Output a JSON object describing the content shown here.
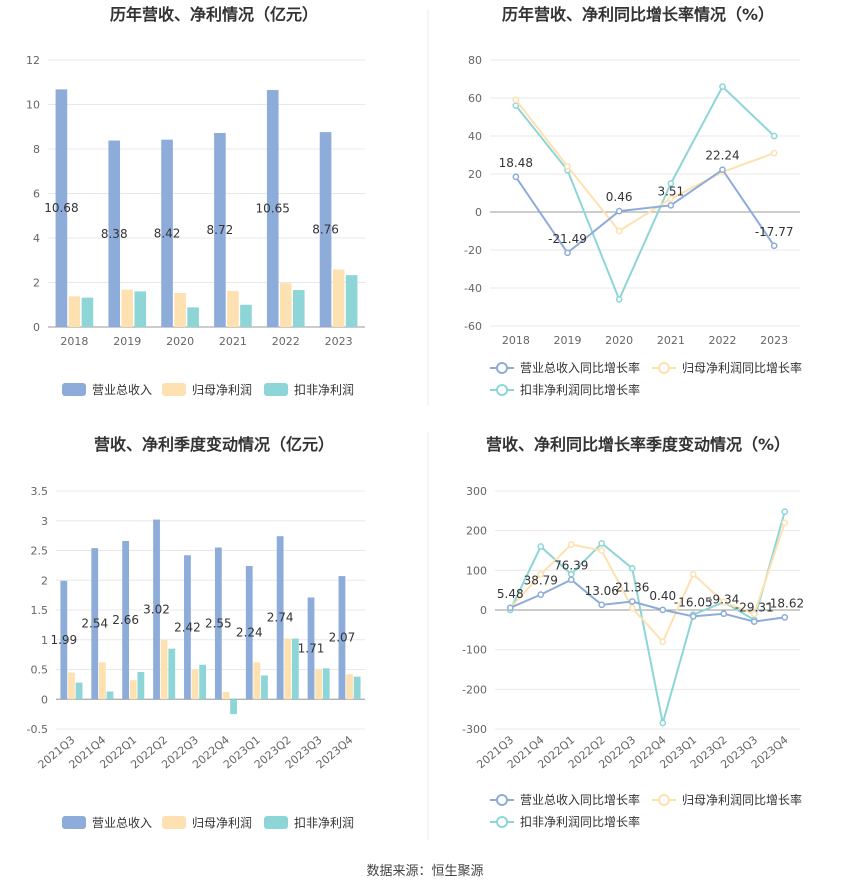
{
  "colors": {
    "revenue": "#8eacd9",
    "parent": "#fde1b0",
    "nonrec": "#8ed5d7",
    "grid": "#e8e8e8",
    "axis": "#999999",
    "divider": "#eeeeee"
  },
  "source": "数据来源：恒生聚源",
  "chart_data": [
    {
      "type": "bar",
      "title": "历年营收、净利情况（亿元）",
      "categories": [
        "2018",
        "2019",
        "2020",
        "2021",
        "2022",
        "2023"
      ],
      "ylim": [
        0,
        12
      ],
      "yticks": [
        "0",
        "2",
        "4",
        "6",
        "8",
        "10",
        "12"
      ],
      "series": [
        {
          "name": "营业总收入",
          "values": [
            10.68,
            8.38,
            8.42,
            8.72,
            10.65,
            8.76
          ],
          "labels": [
            "10.68",
            "8.38",
            "8.42",
            "8.72",
            "10.65",
            "8.76"
          ]
        },
        {
          "name": "归母净利润",
          "values": [
            1.38,
            1.68,
            1.53,
            1.62,
            1.97,
            2.58
          ]
        },
        {
          "name": "扣非净利润",
          "values": [
            1.32,
            1.6,
            0.88,
            1.0,
            1.66,
            2.33
          ]
        }
      ],
      "legend": "bottom"
    },
    {
      "type": "line",
      "title": "历年营收、净利同比增长率情况（%）",
      "categories": [
        "2018",
        "2019",
        "2020",
        "2021",
        "2022",
        "2023"
      ],
      "ylim": [
        -60,
        80
      ],
      "yticks": [
        "-60",
        "-40",
        "-20",
        "0",
        "20",
        "40",
        "60",
        "80"
      ],
      "series": [
        {
          "name": "营业总收入同比增长率",
          "values": [
            18.48,
            -21.49,
            0.46,
            3.51,
            22.24,
            -17.77
          ],
          "labels": [
            "18.48",
            "-21.49",
            "0.46",
            "3.51",
            "22.24",
            "-17.77"
          ]
        },
        {
          "name": "归母净利润同比增长率",
          "values": [
            59,
            24,
            -10,
            7,
            21,
            31
          ]
        },
        {
          "name": "扣非净利润同比增长率",
          "values": [
            56,
            22,
            -46,
            15,
            66,
            40
          ]
        }
      ],
      "legend": "bottom"
    },
    {
      "type": "bar",
      "title": "营收、净利季度变动情况（亿元）",
      "categories": [
        "2021Q3",
        "2021Q4",
        "2022Q1",
        "2022Q2",
        "2022Q3",
        "2022Q4",
        "2023Q1",
        "2023Q2",
        "2023Q3",
        "2023Q4"
      ],
      "ylim": [
        -0.5,
        3.5
      ],
      "yticks": [
        "-0.5",
        "0",
        "0.5",
        "1",
        "1.5",
        "2",
        "2.5",
        "3",
        "3.5"
      ],
      "series": [
        {
          "name": "营业总收入",
          "values": [
            1.99,
            2.54,
            2.66,
            3.02,
            2.42,
            2.55,
            2.24,
            2.74,
            1.71,
            2.07
          ],
          "labels": [
            "1.99",
            "2.54",
            "2.66",
            "3.02",
            "2.42",
            "2.55",
            "2.24",
            "2.74",
            "1.71",
            "2.07"
          ]
        },
        {
          "name": "归母净利润",
          "values": [
            0.45,
            0.62,
            0.32,
            1.0,
            0.5,
            0.12,
            0.62,
            1.02,
            0.5,
            0.42
          ]
        },
        {
          "name": "扣非净利润",
          "values": [
            0.28,
            0.13,
            0.46,
            0.85,
            0.58,
            -0.25,
            0.4,
            1.02,
            0.52,
            0.38
          ]
        }
      ],
      "legend": "bottom"
    },
    {
      "type": "line",
      "title": "营收、净利同比增长率季度变动情况（%）",
      "categories": [
        "2021Q3",
        "2021Q4",
        "2022Q1",
        "2022Q2",
        "2022Q3",
        "2022Q4",
        "2023Q1",
        "2023Q2",
        "2023Q3",
        "2023Q4"
      ],
      "ylim": [
        -300,
        300
      ],
      "yticks": [
        "-300",
        "-200",
        "-100",
        "0",
        "100",
        "200",
        "300"
      ],
      "series": [
        {
          "name": "营业总收入同比增长率",
          "values": [
            5.48,
            38.79,
            76.39,
            13.06,
            21.36,
            0.4,
            -16.05,
            -9.34,
            -29.31,
            -18.62
          ],
          "labels": [
            "5.48",
            "38.79",
            "76.39",
            "13.06",
            "21.36",
            "0.40",
            "-16.05",
            "-9.34",
            "-29.31",
            "-18.62"
          ]
        },
        {
          "name": "归母净利润同比增长率",
          "values": [
            5,
            90,
            165,
            150,
            5,
            -80,
            90,
            20,
            -10,
            220
          ]
        },
        {
          "name": "扣非净利润同比增长率",
          "values": [
            0,
            160,
            90,
            168,
            105,
            -285,
            -12,
            20,
            -25,
            248
          ]
        }
      ],
      "legend": "bottom"
    }
  ]
}
